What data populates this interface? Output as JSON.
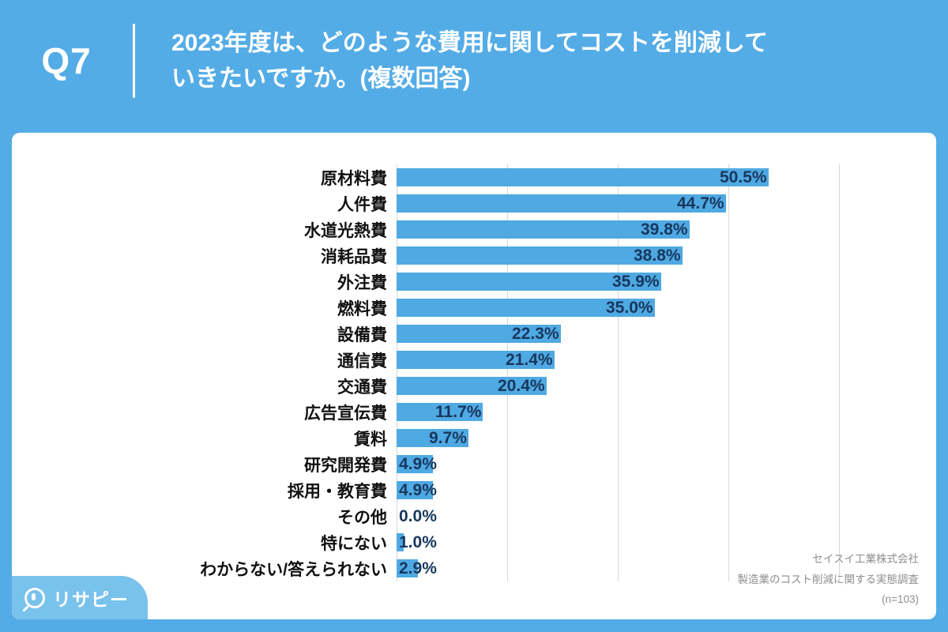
{
  "header": {
    "question_label": "Q7",
    "title_line1": "2023年度は、どのような費用に関してコストを削減して",
    "title_line2": "いきたいですか。(複数回答)"
  },
  "chart_data": {
    "type": "bar",
    "orientation": "horizontal",
    "title": "2023年度は、どのような費用に関してコストを削減していきたいですか。(複数回答)",
    "categories": [
      "原材料費",
      "人件費",
      "水道光熱費",
      "消耗品費",
      "外注費",
      "燃料費",
      "設備費",
      "通信費",
      "交通費",
      "広告宣伝費",
      "賃料",
      "研究開発費",
      "採用・教育費",
      "その他",
      "特にない",
      "わからない/答えられない"
    ],
    "values": [
      50.5,
      44.7,
      39.8,
      38.8,
      35.9,
      35.0,
      22.3,
      21.4,
      20.4,
      11.7,
      9.7,
      4.9,
      4.9,
      0.0,
      1.0,
      2.9
    ],
    "value_labels": [
      "50.5%",
      "44.7%",
      "39.8%",
      "38.8%",
      "35.9%",
      "35.0%",
      "22.3%",
      "21.4%",
      "20.4%",
      "11.7%",
      "9.7%",
      "4.9%",
      "4.9%",
      "0.0%",
      "1.0%",
      "2.9%"
    ],
    "xlim": [
      0,
      60
    ],
    "gridlines": [
      0,
      15,
      30,
      45,
      60
    ],
    "grid_on": true,
    "legend": "none",
    "bar_color": "#4FA9E2",
    "value_text_color": "#17375E",
    "gridline_color": "#d7d7d7"
  },
  "footer": {
    "source_company": "セイスイ工業株式会社",
    "source_survey": "製造業のコスト削減に関する実態調査",
    "source_sample": "(n=103)"
  },
  "logo": {
    "text": "リサピー"
  },
  "theme": {
    "background_blue": "#54ACE6",
    "logo_blue": "#79C2EC",
    "card_white": "#ffffff"
  }
}
